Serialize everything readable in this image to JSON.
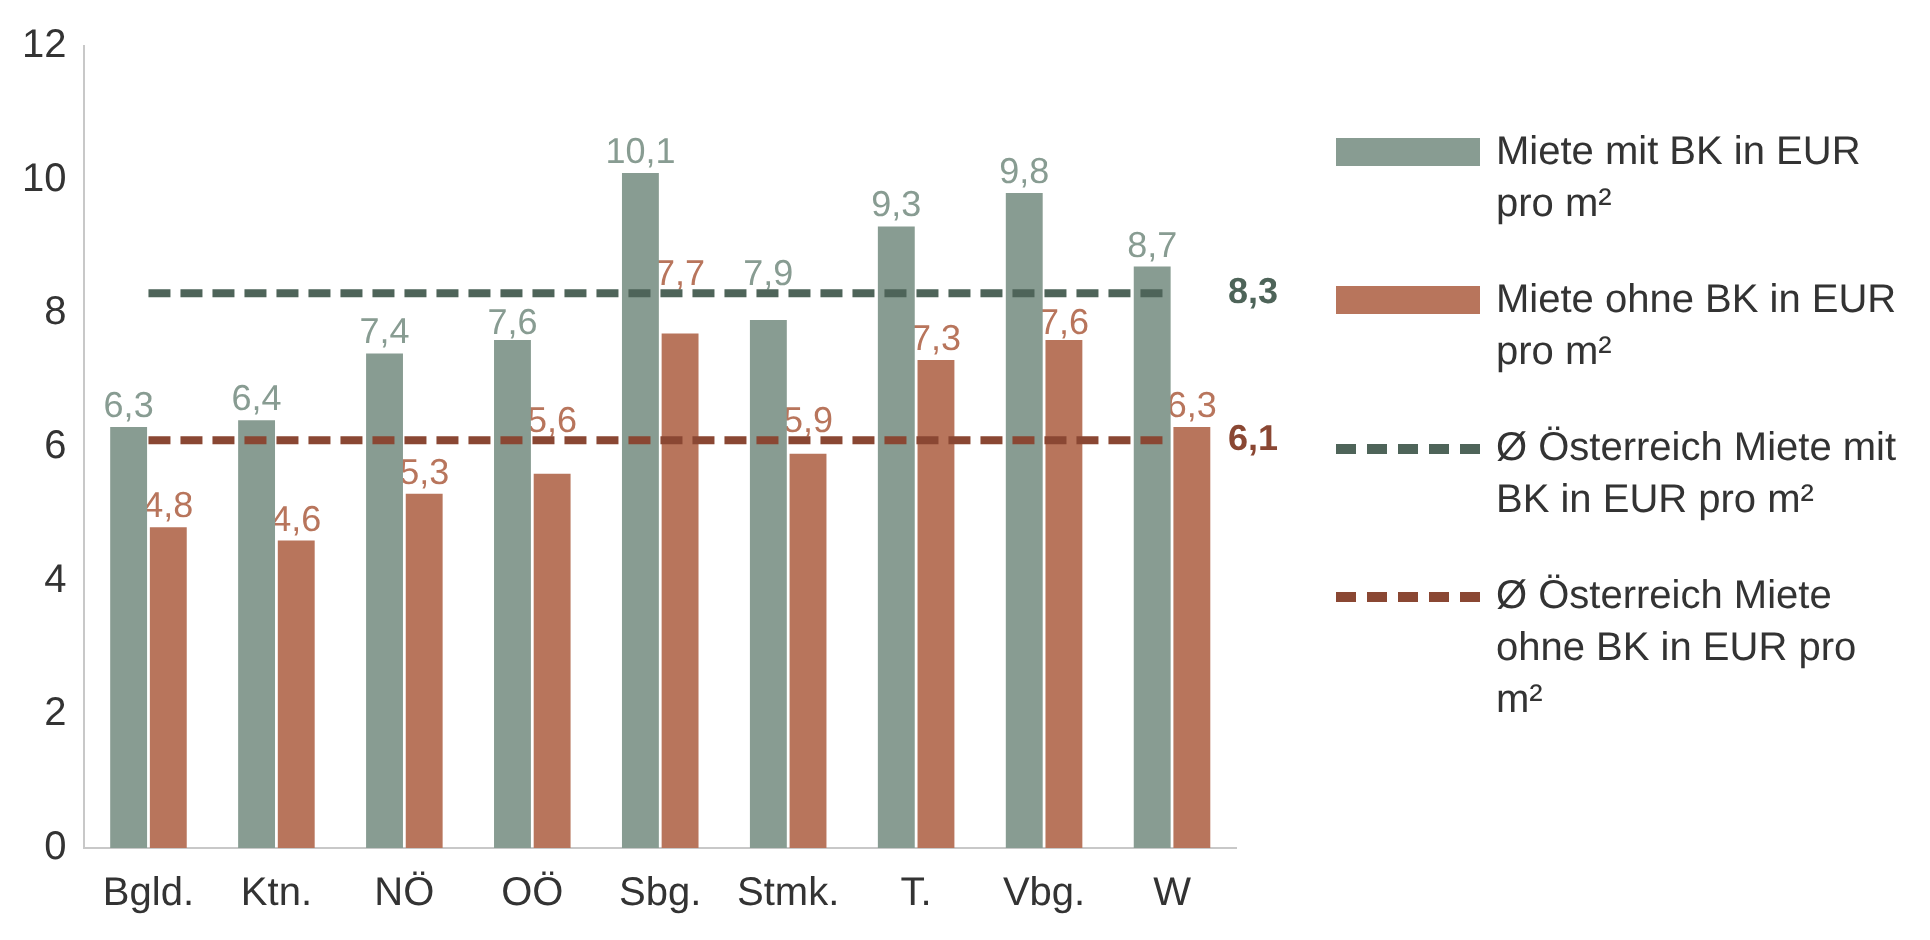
{
  "chart_data": {
    "type": "bar",
    "categories": [
      "Bgld.",
      "Ktn.",
      "NÖ",
      "OÖ",
      "Sbg.",
      "Stmk.",
      "T.",
      "Vbg.",
      "W"
    ],
    "series": [
      {
        "name": "Miete mit BK in EUR pro m²",
        "color": "#889c92",
        "values": [
          6.3,
          6.4,
          7.4,
          7.6,
          10.1,
          7.9,
          9.3,
          9.8,
          8.7
        ],
        "value_labels": [
          "6,3",
          "6,4",
          "7,4",
          "7,6",
          "10,1",
          "7,9",
          "9,3",
          "9,8",
          "8,7"
        ]
      },
      {
        "name": "Miete ohne BK in EUR pro m²",
        "color": "#b8755c",
        "values": [
          4.8,
          4.6,
          5.3,
          5.6,
          7.7,
          5.9,
          7.3,
          7.6,
          6.3
        ],
        "value_labels": [
          "4,8",
          "4,6",
          "5,3",
          "5,6",
          "7,7",
          "5,9",
          "7,3",
          "7,6",
          "6,3"
        ]
      },
      {
        "name": "Ø Österreich Miete mit BK in EUR pro m²",
        "type": "line",
        "line_style": "dashed",
        "color": "#4e6459",
        "values": [
          8.3,
          8.3,
          8.3,
          8.3,
          8.3,
          8.3,
          8.3,
          8.3,
          8.3
        ],
        "value_labels": [
          null,
          null,
          null,
          null,
          null,
          null,
          null,
          null,
          "8,3"
        ]
      },
      {
        "name": "Ø Österreich Miete ohne BK in EUR pro m²",
        "type": "line",
        "line_style": "dashed",
        "color": "#8a4733",
        "values": [
          6.1,
          6.1,
          6.1,
          6.1,
          6.1,
          6.1,
          6.1,
          6.1,
          6.1
        ],
        "value_labels": [
          null,
          null,
          null,
          null,
          null,
          null,
          null,
          null,
          "6,1"
        ]
      }
    ],
    "ylim": [
      0,
      12
    ],
    "yticks": [
      0,
      2,
      4,
      6,
      8,
      10,
      12
    ],
    "grid": false,
    "legend": "right",
    "marker": "none"
  }
}
